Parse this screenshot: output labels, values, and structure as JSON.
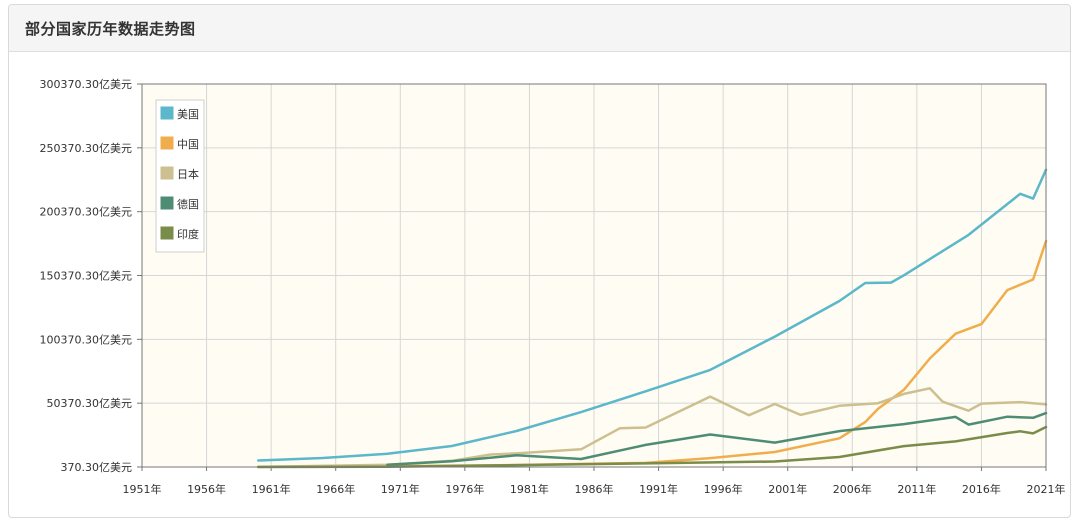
{
  "panel": {
    "title": "部分国家历年数据走势图"
  },
  "chart_data": {
    "type": "line",
    "title": "部分国家历年数据走势图",
    "xlabel": "",
    "ylabel": "",
    "xlim": [
      1951,
      2021
    ],
    "ylim": [
      370.3,
      300370.3
    ],
    "x_ticks": [
      "1951年",
      "1956年",
      "1961年",
      "1966年",
      "1971年",
      "1976年",
      "1981年",
      "1986年",
      "1991年",
      "1996年",
      "2001年",
      "2006年",
      "2011年",
      "2016年",
      "2021年"
    ],
    "y_ticks": [
      "370.30亿美元",
      "50370.30亿美元",
      "100370.30亿美元",
      "150370.30亿美元",
      "200370.30亿美元",
      "250370.30亿美元",
      "300370.30亿美元"
    ],
    "grid": true,
    "legend_position": "top-left",
    "series": [
      {
        "name": "美国",
        "color": "#5bb7c9",
        "x": [
          1960,
          1965,
          1970,
          1975,
          1980,
          1985,
          1990,
          1995,
          2000,
          2005,
          2007,
          2009,
          2010,
          2015,
          2019,
          2020,
          2021
        ],
        "y": [
          5433,
          7439,
          10737,
          16848,
          28573,
          43389,
          59631,
          76397,
          102508,
          130393,
          144518,
          144789,
          150490,
          182206,
          214332,
          210604,
          233151
        ]
      },
      {
        "name": "中国",
        "color": "#f0ad4e",
        "x": [
          1960,
          1970,
          1980,
          1990,
          1995,
          2000,
          2005,
          2007,
          2008,
          2010,
          2012,
          2014,
          2016,
          2018,
          2020,
          2021
        ],
        "y": [
          597,
          926,
          1911,
          3609,
          7345,
          12113,
          22860,
          35522,
          45982,
          60872,
          85320,
          104757,
          112334,
          138949,
          147227,
          177341
        ]
      },
      {
        "name": "日本",
        "color": "#cdbf8f",
        "x": [
          1960,
          1970,
          1975,
          1978,
          1980,
          1985,
          1988,
          1990,
          1995,
          1998,
          2000,
          2002,
          2005,
          2008,
          2010,
          2012,
          2013,
          2015,
          2016,
          2019,
          2021
        ],
        "y": [
          443,
          2127,
          5214,
          10131,
          11053,
          14249,
          30718,
          31329,
          55480,
          40980,
          49684,
          41155,
          48313,
          50379,
          57590,
          62033,
          51556,
          44449,
          50037,
          51183,
          49408
        ]
      },
      {
        "name": "德国",
        "color": "#4e8c74",
        "x": [
          1970,
          1975,
          1980,
          1985,
          1990,
          1995,
          2000,
          2005,
          2010,
          2014,
          2015,
          2018,
          2020,
          2021
        ],
        "y": [
          2160,
          4894,
          9501,
          6613,
          17718,
          25858,
          19479,
          28455,
          34001,
          39605,
          33574,
          39744,
          38899,
          42599
        ]
      },
      {
        "name": "印度",
        "color": "#7a8c4a",
        "x": [
          1960,
          1970,
          1980,
          1990,
          2000,
          2005,
          2010,
          2014,
          2018,
          2019,
          2020,
          2021
        ],
        "y": [
          370,
          624,
          1863,
          3209,
          4685,
          8202,
          16756,
          20391,
          27027,
          28315,
          26676,
          31734
        ]
      }
    ]
  }
}
